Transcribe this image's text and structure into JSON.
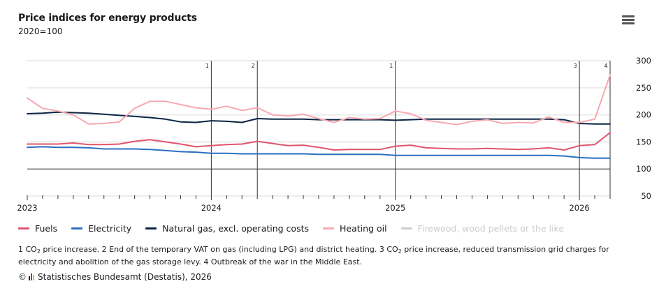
{
  "header": {
    "title": "Price indices for energy products",
    "subtitle": "2020=100",
    "menu_icon": "hamburger-menu-icon"
  },
  "chart_data": {
    "type": "line",
    "title": "Price indices for energy products",
    "subtitle": "2020=100",
    "xlabel": "",
    "ylabel": "",
    "ylim": [
      50,
      300
    ],
    "yticks": [
      50,
      100,
      150,
      200,
      250,
      300
    ],
    "y_axis_position": "right",
    "grid": true,
    "x_start": "2023-01",
    "x_end": "2026-03",
    "x_frequency": "monthly",
    "xtick_labels": [
      {
        "label": "2023",
        "month_index": 0
      },
      {
        "label": "2024",
        "month_index": 12
      },
      {
        "label": "2025",
        "month_index": 24
      },
      {
        "label": "2026",
        "month_index": 36
      }
    ],
    "reference_line": 100,
    "annotations": [
      {
        "label": "1",
        "month_index": 12
      },
      {
        "label": "2",
        "month_index": 15
      },
      {
        "label": "1",
        "month_index": 24
      },
      {
        "label": "3",
        "month_index": 36
      },
      {
        "label": "4",
        "month_index": 38
      }
    ],
    "legend_position": "bottom",
    "series": [
      {
        "name": "Fuels",
        "color": "#e0556b",
        "visible": true,
        "values": [
          146,
          146,
          146,
          148,
          145,
          145,
          146,
          151,
          154,
          150,
          146,
          141,
          143,
          145,
          146,
          151,
          147,
          143,
          144,
          140,
          135,
          136,
          136,
          136,
          142,
          144,
          139,
          138,
          137,
          137,
          138,
          137,
          136,
          137,
          139,
          135,
          143,
          145,
          167
        ]
      },
      {
        "name": "Electricity",
        "color": "#2b6fc2",
        "visible": true,
        "values": [
          140,
          141,
          140,
          140,
          139,
          137,
          137,
          137,
          136,
          134,
          132,
          131,
          129,
          129,
          128,
          128,
          128,
          128,
          128,
          127,
          127,
          127,
          127,
          127,
          125,
          125,
          125,
          125,
          125,
          125,
          125,
          125,
          125,
          125,
          125,
          124,
          121,
          120,
          120
        ]
      },
      {
        "name": "Natural gas, excl. operating costs",
        "color": "#0b2545",
        "visible": true,
        "values": [
          202,
          203,
          205,
          204,
          203,
          201,
          199,
          197,
          195,
          192,
          187,
          186,
          189,
          188,
          186,
          193,
          192,
          192,
          192,
          191,
          191,
          191,
          191,
          191,
          190,
          191,
          192,
          192,
          192,
          192,
          192,
          192,
          192,
          192,
          192,
          191,
          184,
          183,
          183
        ]
      },
      {
        "name": "Heating oil",
        "color": "#f7a8b0",
        "visible": true,
        "values": [
          231,
          212,
          207,
          200,
          183,
          184,
          187,
          212,
          225,
          225,
          219,
          213,
          210,
          216,
          208,
          213,
          200,
          198,
          201,
          193,
          186,
          195,
          192,
          193,
          207,
          202,
          190,
          186,
          182,
          188,
          191,
          184,
          186,
          185,
          196,
          186,
          186,
          192,
          274
        ]
      },
      {
        "name": "Firewood, wood pellets or the like",
        "color": "#cccccc",
        "visible": false,
        "values": []
      }
    ]
  },
  "notes": {
    "text_parts": [
      "1 CO",
      "2",
      " price increase. 2 End of the temporary VAT on gas (including LPG) and district heating. 3 CO",
      "2",
      " price increase, reduced transmission grid charges for electricity and abolition of the gas storage levy. 4 Outbreak of the war in the Middle East."
    ]
  },
  "credits": {
    "symbol": "©",
    "logo_icon": "destatis-logo-icon",
    "text": "Statistisches Bundesamt (Destatis), 2026"
  }
}
